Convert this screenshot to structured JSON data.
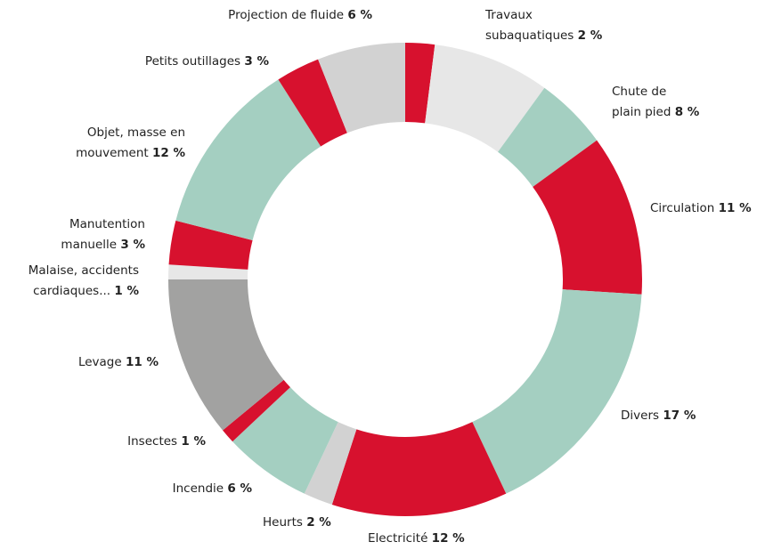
{
  "chart_data": {
    "type": "donut",
    "categories": [
      "Travaux\nsubaquatiques",
      "Chute de\nplain pied",
      null,
      "Circulation",
      "Divers",
      "Electricité",
      "Heurts",
      "Incendie",
      "Insectes",
      "Levage",
      "Malaise, accidents\ncardiaques...",
      "Manutention\nmanuelle",
      "Objet, masse en\nmouvement",
      "Petits outillages",
      "Projection de fluide"
    ],
    "values": [
      2,
      8,
      5,
      11,
      17,
      12,
      2,
      6,
      1,
      11,
      1,
      3,
      12,
      3,
      6
    ],
    "value_labels": [
      "2 %",
      "8 %",
      null,
      "11 %",
      "17 %",
      "12 %",
      "2 %",
      "6 %",
      "1 %",
      "11 %",
      "1 %",
      "3 %",
      "12 %",
      "3 %",
      "6 %"
    ],
    "colors": [
      "#d7112e",
      "#e7e7e7",
      "#a4cfc1",
      "#d7112e",
      "#a4cfc1",
      "#d7112e",
      "#d2d2d2",
      "#a4cfc1",
      "#d7112e",
      "#a2a2a1",
      "#e7e7e7",
      "#d7112e",
      "#a4cfc1",
      "#d7112e",
      "#d2d2d2"
    ]
  }
}
